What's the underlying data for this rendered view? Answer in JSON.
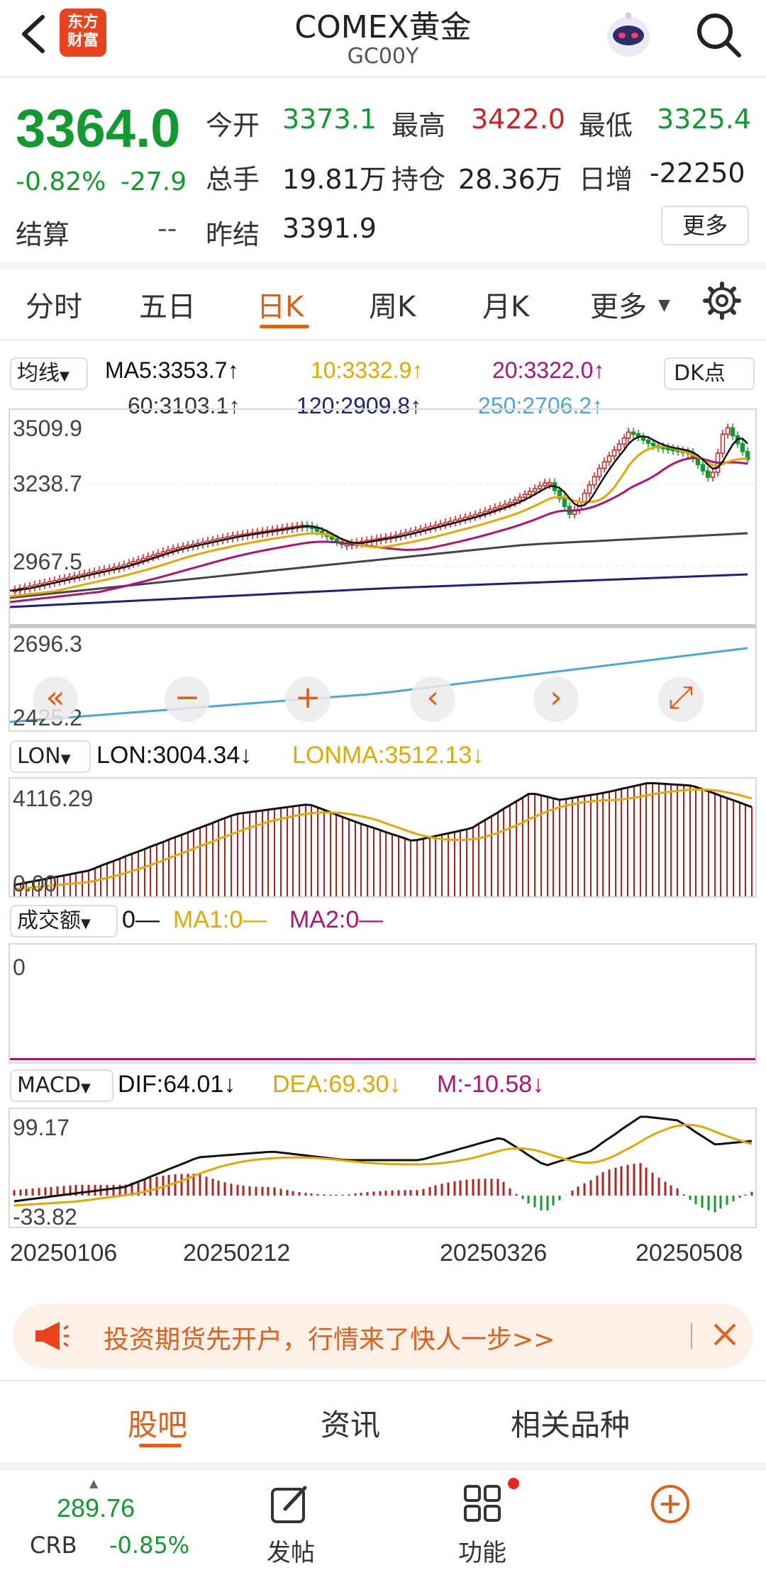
{
  "header": {
    "title": "COMEX黄金",
    "code": "GC00Y",
    "logo_line1": "东方",
    "logo_line2": "财富"
  },
  "quote": {
    "price": "3364.0",
    "change_pct": "-0.82%",
    "change": "-27.9",
    "open_label": "今开",
    "open": "3373.1",
    "high_label": "最高",
    "high": "3422.0",
    "low_label": "最低",
    "low": "3325.4",
    "volume_label": "总手",
    "volume": "19.81万",
    "oi_label": "持仓",
    "oi": "28.36万",
    "daily_inc_label": "日增",
    "daily_inc": "-22250",
    "settle_label": "结算",
    "settle": "--",
    "prev_settle_label": "昨结",
    "prev_settle": "3391.9",
    "more_button": "更多"
  },
  "tabs": [
    "分时",
    "五日",
    "日K",
    "周K",
    "月K",
    "更多"
  ],
  "ma": {
    "selector": "均线",
    "ma5": "MA5:3353.7",
    "ma10": "10:3332.9",
    "ma20": "20:3322.0",
    "ma60": "60:3103.1",
    "ma120": "120:2909.8",
    "ma250": "250:2706.2",
    "dk_button": "DK点",
    "up": "↑"
  },
  "colors": {
    "up": "#d32020",
    "down": "#139a2e",
    "ma5": "#111111",
    "ma10": "#e0a800",
    "ma20": "#b0127a",
    "ma60": "#444444",
    "ma120": "#1a237e",
    "ma250": "#4aa8d8",
    "accent": "#e0601a"
  },
  "kline": {
    "axis": [
      "3509.9",
      "3238.7",
      "2967.5",
      "2696.3",
      "2425.2"
    ]
  },
  "chart_controls": [
    "«",
    "−",
    "+",
    "‹",
    "›",
    "⤢"
  ],
  "lon": {
    "selector": "LON",
    "lon": "LON:3004.34",
    "lonma": "LONMA:3512.13",
    "down": "↓",
    "axis_top": "4116.29",
    "axis_bottom": "0.00"
  },
  "turnover": {
    "selector": "成交额",
    "val": "0—",
    "ma1": "MA1:0—",
    "ma2": "MA2:0—",
    "axis": "0"
  },
  "macd": {
    "selector": "MACD",
    "dif": "DIF:64.01",
    "dea": "DEA:69.30",
    "m": "M:-10.58",
    "down": "↓",
    "axis_top": "99.17",
    "axis_bottom": "-33.82"
  },
  "dates": [
    "20250106",
    "20250212",
    "20250326",
    "20250508"
  ],
  "banner": {
    "text": "投资期货先开户，行情来了快人一步>>"
  },
  "bottom_tabs": [
    "股吧",
    "资讯",
    "相关品种"
  ],
  "nav": {
    "crb_value": "289.76",
    "crb_label": "CRB",
    "crb_change": "-0.85%",
    "post": "发帖",
    "func": "功能"
  }
}
